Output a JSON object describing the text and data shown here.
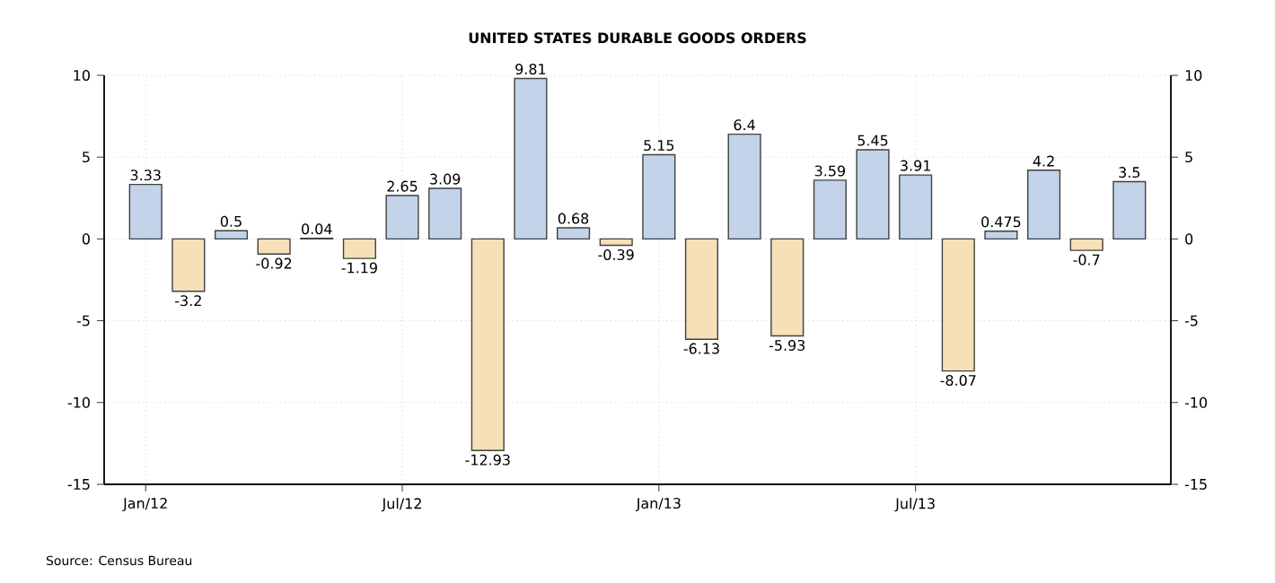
{
  "chart_data": {
    "type": "bar",
    "title": "UNITED STATES DURABLE GOODS ORDERS",
    "categories": [
      "Jan/12",
      null,
      null,
      null,
      null,
      null,
      "Jul/12",
      null,
      null,
      null,
      null,
      null,
      "Jan/13",
      null,
      null,
      null,
      null,
      null,
      "Jul/13",
      null,
      null,
      null,
      null,
      null
    ],
    "values": [
      3.33,
      -3.2,
      0.5,
      -0.92,
      0.04,
      -1.19,
      2.65,
      3.09,
      -12.93,
      9.81,
      0.68,
      -0.39,
      5.15,
      -6.13,
      6.4,
      -5.93,
      3.59,
      5.45,
      3.91,
      -8.07,
      0.475,
      4.2,
      -0.7,
      3.5
    ],
    "colors": [
      "#c3d3ea",
      "#f5e0b8",
      "#c3d3ea",
      "#f5e0b8",
      "#c3d3ea",
      "#f5e0b8",
      "#c3d3ea",
      "#c3d3ea",
      "#f5e0b8",
      "#c3d3ea",
      "#c3d3ea",
      "#f5e0b8",
      "#c3d3ea",
      "#f5e0b8",
      "#c3d3ea",
      "#f5e0b8",
      "#c3d3ea",
      "#c3d3ea",
      "#c3d3ea",
      "#f5e0b8",
      "#c3d3ea",
      "#c3d3ea",
      "#f5e0b8",
      "#c3d3ea"
    ],
    "ylim": [
      -15,
      10
    ],
    "yticks": [
      -15,
      -10,
      -5,
      0,
      5,
      10
    ],
    "y2lim": [
      -15,
      10
    ],
    "y2ticks": [
      -15,
      -10,
      -5,
      0,
      5,
      10
    ],
    "data_labels": true,
    "grid": true,
    "annotations": [
      "Source: Census Bureau"
    ]
  }
}
